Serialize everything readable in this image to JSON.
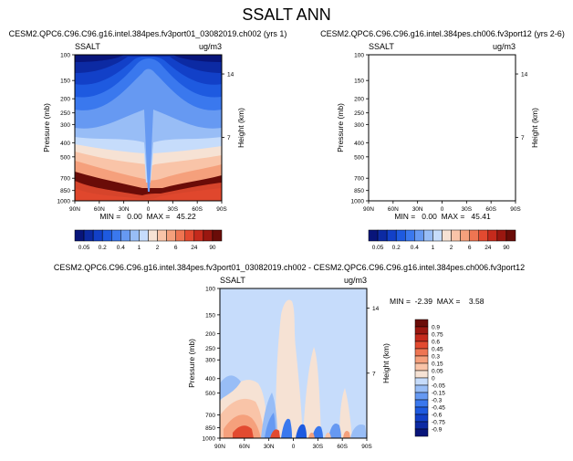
{
  "title": "SSALT ANN",
  "chart_data": [
    {
      "type": "heatmap",
      "title": "CESM2.QPC6.C96.C96.g16.intel.384pes.fv3port01_03082019.ch002 (yrs 1)",
      "left_label": "SSALT",
      "units": "ug/m3",
      "ylabel": "Pressure (mb)",
      "ylabel_right": "Height (km)",
      "yticks": [
        "100",
        "150",
        "200",
        "250",
        "300",
        "400",
        "500",
        "700",
        "850",
        "1000"
      ],
      "yticks_right": [
        "14",
        "7"
      ],
      "xticks": [
        "90N",
        "60N",
        "30N",
        "0",
        "30S",
        "60S",
        "90S"
      ],
      "stats": "MIN =   0.00  MAX =   45.22",
      "colorbar": [
        "0.05",
        "0.2",
        "0.4",
        "1",
        "2",
        "6",
        "24",
        "90"
      ]
    },
    {
      "type": "heatmap",
      "title": "CESM2.QPC6.C96.C96.g16.intel.384pes.ch006.fv3port12 (yrs 2-6)",
      "left_label": "SSALT",
      "units": "ug/m3",
      "ylabel": "Pressure (mb)",
      "ylabel_right": "Height (km)",
      "yticks": [
        "100",
        "150",
        "200",
        "250",
        "300",
        "400",
        "500",
        "700",
        "850",
        "1000"
      ],
      "yticks_right": [
        "14",
        "7"
      ],
      "xticks": [
        "90N",
        "60N",
        "30N",
        "0",
        "30S",
        "60S",
        "90S"
      ],
      "stats": "MIN =   0.00  MAX =   45.41",
      "colorbar": [
        "0.05",
        "0.2",
        "0.4",
        "1",
        "2",
        "6",
        "24",
        "90"
      ]
    },
    {
      "type": "heatmap",
      "title": "CESM2.QPC6.C96.C96.g16.intel.384pes.fv3port01_03082019.ch002 - CESM2.QPC6.C96.C96.g16.intel.384pes.ch006.fv3port12",
      "left_label": "SSALT",
      "units": "ug/m3",
      "ylabel": "Pressure (mb)",
      "ylabel_right": "Height (km)",
      "yticks": [
        "100",
        "150",
        "200",
        "250",
        "300",
        "400",
        "500",
        "700",
        "850",
        "1000"
      ],
      "yticks_right": [
        "14",
        "7"
      ],
      "xticks": [
        "90N",
        "60N",
        "30N",
        "0",
        "30S",
        "60S",
        "90S"
      ],
      "stats": "MIN =  -2.39  MAX =    3.58",
      "colorbar": [
        "0.9",
        "0.75",
        "0.6",
        "0.45",
        "0.3",
        "0.15",
        "0.05",
        "0",
        "-0.05",
        "-0.15",
        "-0.3",
        "-0.45",
        "-0.6",
        "-0.75",
        "-0.9"
      ]
    }
  ],
  "colors": {
    "seq": [
      "#08157a",
      "#0c2aa3",
      "#1240c8",
      "#1e5ae0",
      "#3a78ee",
      "#6699f2",
      "#98bdf6",
      "#c6dcfb",
      "#f6e2d4",
      "#f9c4a8",
      "#f5a07c",
      "#ee7552",
      "#e24a30",
      "#c52a1c",
      "#9a1710",
      "#6a0c08"
    ],
    "div": [
      "#6a0c08",
      "#9a1710",
      "#c52a1c",
      "#e24a30",
      "#ee7552",
      "#f5a07c",
      "#f9c4a8",
      "#f6e2d4",
      "#c6dcfb",
      "#98bdf6",
      "#6699f2",
      "#3a78ee",
      "#1e5ae0",
      "#1240c8",
      "#0c2aa3",
      "#08157a"
    ]
  }
}
